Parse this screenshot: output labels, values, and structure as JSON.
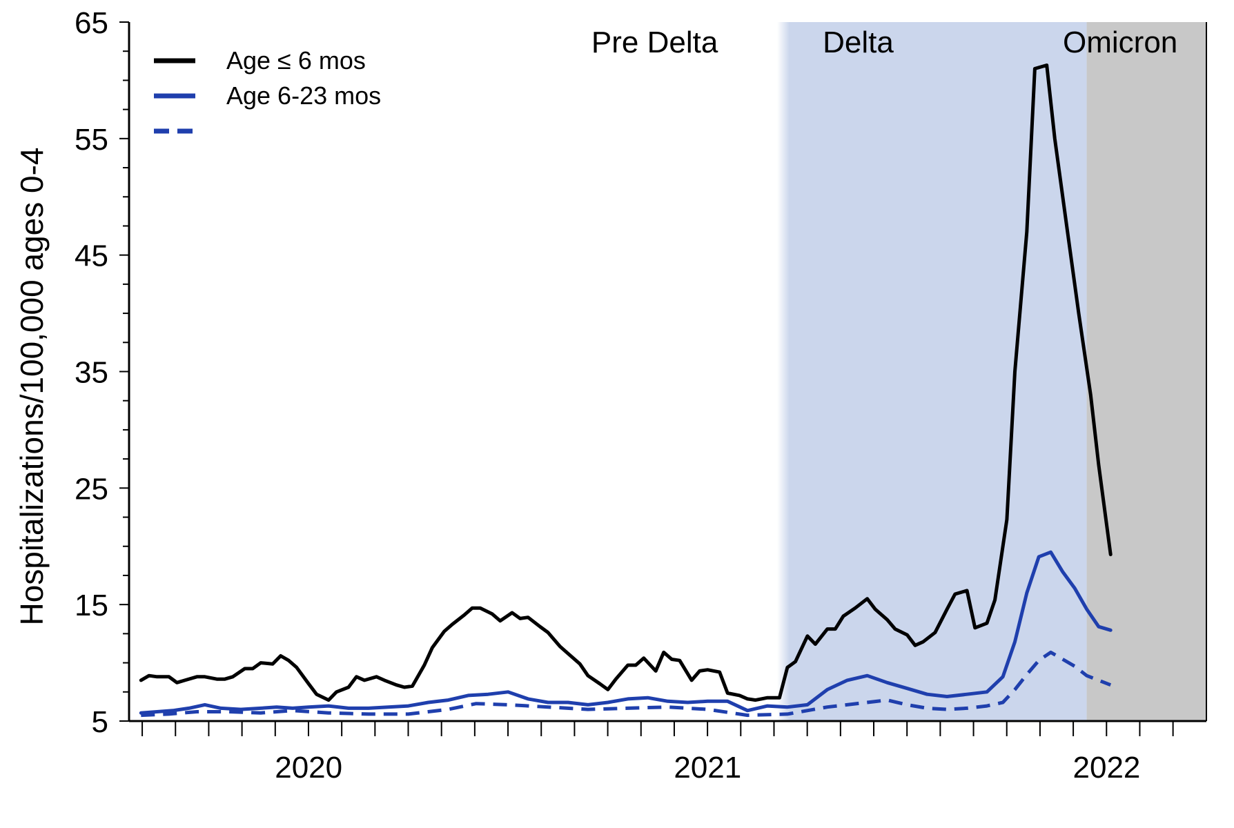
{
  "chart_data": {
    "type": "line",
    "ylabel": "Hospitalizations/100,000 ages 0-4",
    "ylim": [
      5,
      65
    ],
    "yticks": [
      5,
      15,
      25,
      35,
      45,
      55,
      65
    ],
    "xlim": [
      2019.55,
      2022.25
    ],
    "xtick_labels": [
      {
        "label": "2020",
        "x": 2020.0
      },
      {
        "label": "2021",
        "x": 2021.0
      },
      {
        "label": "2022",
        "x": 2022.0
      }
    ],
    "periods": [
      {
        "label": "Pre Delta",
        "start": 2019.55,
        "end": 2021.2,
        "color": "#ffffff"
      },
      {
        "label": "Delta",
        "start": 2021.2,
        "end": 2021.95,
        "color": "#cbd6ec"
      },
      {
        "label": "Omicron",
        "start": 2021.95,
        "end": 2022.25,
        "color": "#c8c8c8"
      }
    ],
    "legend_position": "top-left",
    "series": [
      {
        "name": "Age ≤ 6 mos",
        "color": "#000000",
        "dash": "solid",
        "points": [
          [
            2019.58,
            8.5
          ],
          [
            2019.6,
            8.9
          ],
          [
            2019.62,
            8.8
          ],
          [
            2019.65,
            8.8
          ],
          [
            2019.67,
            8.3
          ],
          [
            2019.69,
            8.5
          ],
          [
            2019.72,
            8.8
          ],
          [
            2019.74,
            8.8
          ],
          [
            2019.77,
            8.6
          ],
          [
            2019.79,
            8.6
          ],
          [
            2019.81,
            8.8
          ],
          [
            2019.84,
            9.5
          ],
          [
            2019.86,
            9.5
          ],
          [
            2019.88,
            10.0
          ],
          [
            2019.91,
            9.9
          ],
          [
            2019.93,
            10.6
          ],
          [
            2019.95,
            10.2
          ],
          [
            2019.97,
            9.6
          ],
          [
            2020.0,
            8.2
          ],
          [
            2020.02,
            7.3
          ],
          [
            2020.05,
            6.8
          ],
          [
            2020.07,
            7.5
          ],
          [
            2020.1,
            7.9
          ],
          [
            2020.12,
            8.8
          ],
          [
            2020.14,
            8.5
          ],
          [
            2020.17,
            8.8
          ],
          [
            2020.19,
            8.5
          ],
          [
            2020.22,
            8.1
          ],
          [
            2020.24,
            7.9
          ],
          [
            2020.26,
            8.0
          ],
          [
            2020.29,
            9.8
          ],
          [
            2020.31,
            11.3
          ],
          [
            2020.34,
            12.7
          ],
          [
            2020.36,
            13.3
          ],
          [
            2020.39,
            14.1
          ],
          [
            2020.41,
            14.7
          ],
          [
            2020.43,
            14.7
          ],
          [
            2020.46,
            14.2
          ],
          [
            2020.48,
            13.6
          ],
          [
            2020.51,
            14.3
          ],
          [
            2020.53,
            13.8
          ],
          [
            2020.55,
            13.9
          ],
          [
            2020.58,
            13.1
          ],
          [
            2020.6,
            12.6
          ],
          [
            2020.63,
            11.4
          ],
          [
            2020.65,
            10.8
          ],
          [
            2020.68,
            9.9
          ],
          [
            2020.7,
            8.9
          ],
          [
            2020.73,
            8.2
          ],
          [
            2020.75,
            7.7
          ],
          [
            2020.77,
            8.6
          ],
          [
            2020.8,
            9.8
          ],
          [
            2020.82,
            9.8
          ],
          [
            2020.84,
            10.4
          ],
          [
            2020.87,
            9.3
          ],
          [
            2020.89,
            10.9
          ],
          [
            2020.91,
            10.3
          ],
          [
            2020.93,
            10.2
          ],
          [
            2020.96,
            8.5
          ],
          [
            2020.98,
            9.3
          ],
          [
            2021.0,
            9.4
          ],
          [
            2021.03,
            9.2
          ],
          [
            2021.05,
            7.4
          ],
          [
            2021.08,
            7.2
          ],
          [
            2021.1,
            6.9
          ],
          [
            2021.12,
            6.8
          ],
          [
            2021.15,
            7.0
          ],
          [
            2021.18,
            7.0
          ],
          [
            2021.2,
            9.6
          ],
          [
            2021.22,
            10.1
          ],
          [
            2021.25,
            12.3
          ],
          [
            2021.27,
            11.6
          ],
          [
            2021.3,
            12.9
          ],
          [
            2021.32,
            12.9
          ],
          [
            2021.34,
            14.0
          ],
          [
            2021.37,
            14.7
          ],
          [
            2021.4,
            15.5
          ],
          [
            2021.42,
            14.6
          ],
          [
            2021.45,
            13.7
          ],
          [
            2021.47,
            12.9
          ],
          [
            2021.5,
            12.4
          ],
          [
            2021.52,
            11.5
          ],
          [
            2021.54,
            11.8
          ],
          [
            2021.57,
            12.6
          ],
          [
            2021.6,
            14.6
          ],
          [
            2021.62,
            15.9
          ],
          [
            2021.65,
            16.2
          ],
          [
            2021.67,
            13.0
          ],
          [
            2021.7,
            13.4
          ],
          [
            2021.72,
            15.4
          ],
          [
            2021.75,
            22.3
          ],
          [
            2021.77,
            35.0
          ],
          [
            2021.8,
            47.0
          ],
          [
            2021.82,
            61.0
          ],
          [
            2021.85,
            61.3
          ],
          [
            2021.87,
            55.0
          ],
          [
            2021.9,
            47.5
          ],
          [
            2021.93,
            40.0
          ],
          [
            2021.96,
            33.0
          ],
          [
            2021.98,
            27.0
          ],
          [
            2022.01,
            19.3
          ]
        ]
      },
      {
        "name": "Age 6-23 mos",
        "color": "#1f3fad",
        "dash": "solid",
        "points": [
          [
            2019.58,
            5.7
          ],
          [
            2019.62,
            5.8
          ],
          [
            2019.66,
            5.9
          ],
          [
            2019.7,
            6.1
          ],
          [
            2019.74,
            6.4
          ],
          [
            2019.78,
            6.1
          ],
          [
            2019.83,
            6.0
          ],
          [
            2019.88,
            6.1
          ],
          [
            2019.92,
            6.2
          ],
          [
            2019.96,
            6.1
          ],
          [
            2020.0,
            6.2
          ],
          [
            2020.05,
            6.3
          ],
          [
            2020.1,
            6.1
          ],
          [
            2020.15,
            6.1
          ],
          [
            2020.2,
            6.2
          ],
          [
            2020.25,
            6.3
          ],
          [
            2020.3,
            6.6
          ],
          [
            2020.35,
            6.8
          ],
          [
            2020.4,
            7.2
          ],
          [
            2020.45,
            7.3
          ],
          [
            2020.5,
            7.5
          ],
          [
            2020.55,
            6.9
          ],
          [
            2020.6,
            6.6
          ],
          [
            2020.65,
            6.6
          ],
          [
            2020.7,
            6.4
          ],
          [
            2020.75,
            6.6
          ],
          [
            2020.8,
            6.9
          ],
          [
            2020.85,
            7.0
          ],
          [
            2020.9,
            6.7
          ],
          [
            2020.95,
            6.6
          ],
          [
            2021.0,
            6.7
          ],
          [
            2021.05,
            6.7
          ],
          [
            2021.1,
            5.9
          ],
          [
            2021.15,
            6.3
          ],
          [
            2021.2,
            6.2
          ],
          [
            2021.25,
            6.4
          ],
          [
            2021.3,
            7.7
          ],
          [
            2021.35,
            8.5
          ],
          [
            2021.4,
            8.9
          ],
          [
            2021.45,
            8.3
          ],
          [
            2021.5,
            7.8
          ],
          [
            2021.55,
            7.3
          ],
          [
            2021.6,
            7.1
          ],
          [
            2021.65,
            7.3
          ],
          [
            2021.7,
            7.5
          ],
          [
            2021.74,
            8.8
          ],
          [
            2021.77,
            11.8
          ],
          [
            2021.8,
            16.0
          ],
          [
            2021.83,
            19.1
          ],
          [
            2021.86,
            19.5
          ],
          [
            2021.89,
            17.8
          ],
          [
            2021.92,
            16.4
          ],
          [
            2021.95,
            14.6
          ],
          [
            2021.98,
            13.1
          ],
          [
            2022.01,
            12.8
          ]
        ]
      },
      {
        "name": "",
        "color": "#1f3fad",
        "dash": "dashed",
        "points": [
          [
            2019.58,
            5.5
          ],
          [
            2019.65,
            5.6
          ],
          [
            2019.72,
            5.8
          ],
          [
            2019.8,
            5.8
          ],
          [
            2019.88,
            5.7
          ],
          [
            2019.96,
            5.9
          ],
          [
            2020.05,
            5.7
          ],
          [
            2020.15,
            5.6
          ],
          [
            2020.25,
            5.6
          ],
          [
            2020.35,
            6.0
          ],
          [
            2020.42,
            6.5
          ],
          [
            2020.5,
            6.4
          ],
          [
            2020.6,
            6.2
          ],
          [
            2020.7,
            6.0
          ],
          [
            2020.8,
            6.1
          ],
          [
            2020.9,
            6.2
          ],
          [
            2021.0,
            6.0
          ],
          [
            2021.1,
            5.5
          ],
          [
            2021.2,
            5.6
          ],
          [
            2021.3,
            6.2
          ],
          [
            2021.4,
            6.6
          ],
          [
            2021.45,
            6.8
          ],
          [
            2021.5,
            6.4
          ],
          [
            2021.55,
            6.1
          ],
          [
            2021.6,
            6.0
          ],
          [
            2021.65,
            6.1
          ],
          [
            2021.7,
            6.3
          ],
          [
            2021.74,
            6.6
          ],
          [
            2021.77,
            7.7
          ],
          [
            2021.8,
            9.0
          ],
          [
            2021.83,
            10.2
          ],
          [
            2021.86,
            10.9
          ],
          [
            2021.89,
            10.3
          ],
          [
            2021.92,
            9.7
          ],
          [
            2021.95,
            8.9
          ],
          [
            2021.98,
            8.5
          ],
          [
            2022.01,
            8.1
          ]
        ]
      }
    ]
  }
}
